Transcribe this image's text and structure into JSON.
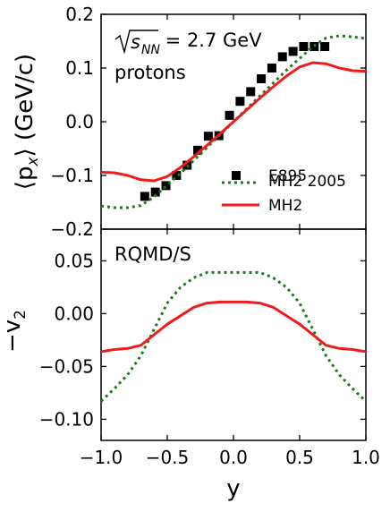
{
  "chart_data": [
    {
      "type": "scatter",
      "panel": "top",
      "annotation": "√s_NN = 2.7 GeV",
      "annotation_radicand": "s",
      "annotation_subscript": "NN",
      "annotation_value": " = 2.7 GeV",
      "annotation2": "protons",
      "ylabel": "⟨p_x⟩ (GeV/c)",
      "ylabel_main": "⟨p",
      "ylabel_sub": "x",
      "ylabel_rest": "⟩ (GeV/c)",
      "xlabel": "",
      "xlim": [
        -1.0,
        1.0
      ],
      "ylim": [
        -0.2,
        0.2
      ],
      "yticks": [
        -0.2,
        -0.1,
        0.0,
        0.1,
        0.2
      ],
      "ytick_labels": [
        "−0.2",
        "−0.1",
        "0.0",
        "0.1",
        "0.2"
      ],
      "legend_position": "right",
      "series": [
        {
          "name": "E895",
          "style": "markers",
          "color": "#000000",
          "x": [
            -0.67,
            -0.59,
            -0.51,
            -0.43,
            -0.35,
            -0.27,
            -0.19,
            -0.11,
            -0.03,
            0.05,
            0.13,
            0.21,
            0.29,
            0.37,
            0.45,
            0.53,
            0.61,
            0.69
          ],
          "y": [
            -0.139,
            -0.131,
            -0.119,
            -0.1,
            -0.081,
            -0.053,
            -0.027,
            -0.026,
            0.012,
            0.038,
            0.056,
            0.08,
            0.1,
            0.121,
            0.131,
            0.14,
            0.14,
            0.14
          ]
        },
        {
          "name": "MH2 2005",
          "style": "dotted",
          "color": "#1f7a1f",
          "x": [
            -1.0,
            -0.9,
            -0.8,
            -0.7,
            -0.6,
            -0.5,
            -0.4,
            -0.3,
            -0.2,
            -0.1,
            0.0,
            0.1,
            0.2,
            0.3,
            0.4,
            0.5,
            0.6,
            0.7,
            0.8,
            0.9,
            1.0
          ],
          "y": [
            -0.157,
            -0.16,
            -0.16,
            -0.156,
            -0.14,
            -0.118,
            -0.096,
            -0.072,
            -0.048,
            -0.024,
            0.0,
            0.024,
            0.048,
            0.072,
            0.096,
            0.118,
            0.14,
            0.156,
            0.16,
            0.158,
            0.155
          ]
        },
        {
          "name": "MH2",
          "style": "solid",
          "color": "#ee1c1c",
          "x": [
            -1.0,
            -0.9,
            -0.8,
            -0.7,
            -0.6,
            -0.5,
            -0.4,
            -0.3,
            -0.2,
            -0.1,
            0.0,
            0.1,
            0.2,
            0.3,
            0.4,
            0.5,
            0.6,
            0.7,
            0.8,
            0.9,
            1.0
          ],
          "y": [
            -0.094,
            -0.095,
            -0.1,
            -0.108,
            -0.11,
            -0.102,
            -0.085,
            -0.065,
            -0.044,
            -0.022,
            0.0,
            0.022,
            0.044,
            0.065,
            0.085,
            0.102,
            0.11,
            0.108,
            0.1,
            0.095,
            0.094
          ]
        }
      ]
    },
    {
      "type": "line",
      "panel": "bottom",
      "annotation": "RQMD/S",
      "ylabel": "−v₂",
      "ylabel_main": "−v",
      "ylabel_sub": "2",
      "xlabel": "y",
      "xlim": [
        -1.0,
        1.0
      ],
      "ylim": [
        -0.12,
        0.08
      ],
      "xticks": [
        -1.0,
        -0.5,
        0.0,
        0.5,
        1.0
      ],
      "xtick_labels": [
        "−1.0",
        "−0.5",
        "0.0",
        "0.5",
        "1.0"
      ],
      "yticks": [
        -0.1,
        -0.05,
        0.0,
        0.05
      ],
      "ytick_labels": [
        "−0.10",
        "−0.05",
        "0.00",
        "0.05"
      ],
      "series": [
        {
          "name": "MH2 2005",
          "style": "dotted",
          "color": "#1f7a1f",
          "x": [
            -1.0,
            -0.9,
            -0.8,
            -0.7,
            -0.6,
            -0.5,
            -0.4,
            -0.3,
            -0.2,
            -0.1,
            0.0,
            0.1,
            0.2,
            0.3,
            0.4,
            0.5,
            0.6,
            0.7,
            0.8,
            0.9,
            1.0
          ],
          "y": [
            -0.083,
            -0.071,
            -0.058,
            -0.04,
            -0.015,
            0.01,
            0.025,
            0.034,
            0.039,
            0.039,
            0.039,
            0.039,
            0.039,
            0.034,
            0.025,
            0.01,
            -0.015,
            -0.04,
            -0.058,
            -0.071,
            -0.083
          ]
        },
        {
          "name": "MH2",
          "style": "solid",
          "color": "#ee1c1c",
          "x": [
            -1.0,
            -0.9,
            -0.8,
            -0.7,
            -0.6,
            -0.5,
            -0.4,
            -0.3,
            -0.2,
            -0.1,
            0.0,
            0.1,
            0.2,
            0.3,
            0.4,
            0.5,
            0.6,
            0.7,
            0.8,
            0.9,
            1.0
          ],
          "y": [
            -0.036,
            -0.034,
            -0.033,
            -0.03,
            -0.02,
            -0.01,
            -0.002,
            0.006,
            0.01,
            0.011,
            0.011,
            0.011,
            0.01,
            0.006,
            -0.002,
            -0.01,
            -0.02,
            -0.03,
            -0.033,
            -0.034,
            -0.036
          ]
        }
      ]
    }
  ]
}
